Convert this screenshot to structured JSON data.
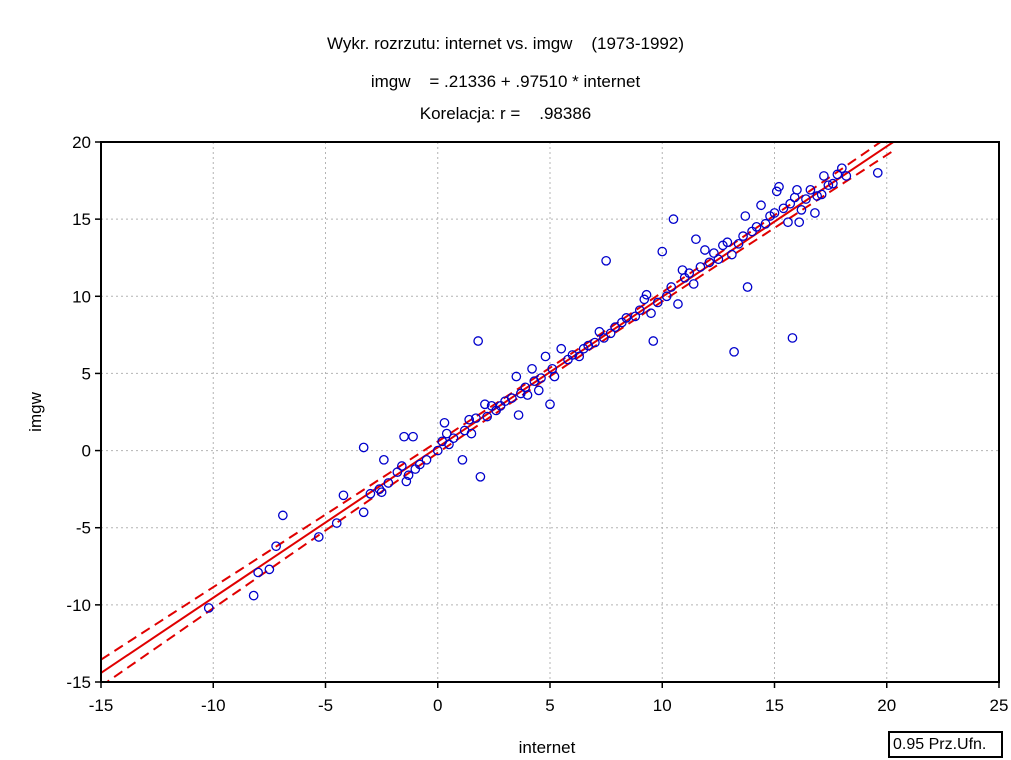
{
  "chart_data": {
    "type": "scatter",
    "title": "Wykr. rozrzutu: internet vs. imgw    (1973-1992)",
    "equation": "imgw    = .21336 + .97510 * internet",
    "correlation": "Korelacja: r =    .98386",
    "xlabel": "internet",
    "ylabel": "imgw",
    "xlim": [
      -15,
      25
    ],
    "ylim": [
      -15,
      20
    ],
    "xticks": [
      -15,
      -10,
      -5,
      0,
      5,
      10,
      15,
      20,
      25
    ],
    "yticks": [
      -15,
      -10,
      -5,
      0,
      5,
      10,
      15,
      20
    ],
    "grid": true,
    "regression": {
      "intercept": 0.21336,
      "slope": 0.9751,
      "color": "#e00000"
    },
    "confidence_label": "0.95 Prz.Ufn.",
    "point_color": "#0000cc",
    "points": [
      [
        -10.2,
        -10.2
      ],
      [
        -8.2,
        -9.4
      ],
      [
        -8.0,
        -7.9
      ],
      [
        -7.5,
        -7.7
      ],
      [
        -7.2,
        -6.2
      ],
      [
        -6.9,
        -4.2
      ],
      [
        -5.3,
        -5.6
      ],
      [
        -4.5,
        -4.7
      ],
      [
        -4.2,
        -2.9
      ],
      [
        -3.3,
        0.2
      ],
      [
        -3.3,
        -4.0
      ],
      [
        -3.0,
        -2.8
      ],
      [
        -2.6,
        -2.5
      ],
      [
        -2.5,
        -2.7
      ],
      [
        -2.4,
        -0.6
      ],
      [
        -2.2,
        -2.1
      ],
      [
        -1.8,
        -1.4
      ],
      [
        -1.6,
        -1.0
      ],
      [
        -1.5,
        0.9
      ],
      [
        -1.4,
        -2.0
      ],
      [
        -1.3,
        -1.6
      ],
      [
        -1.1,
        0.9
      ],
      [
        -1.0,
        -1.2
      ],
      [
        -0.8,
        -0.9
      ],
      [
        -0.5,
        -0.6
      ],
      [
        0.0,
        0.0
      ],
      [
        0.2,
        0.6
      ],
      [
        0.3,
        1.8
      ],
      [
        0.4,
        1.1
      ],
      [
        0.5,
        0.4
      ],
      [
        0.7,
        0.8
      ],
      [
        1.1,
        -0.6
      ],
      [
        1.2,
        1.3
      ],
      [
        1.4,
        2.0
      ],
      [
        1.5,
        1.1
      ],
      [
        1.7,
        2.1
      ],
      [
        1.8,
        7.1
      ],
      [
        1.9,
        -1.7
      ],
      [
        2.1,
        3.0
      ],
      [
        2.2,
        2.2
      ],
      [
        2.4,
        2.9
      ],
      [
        2.6,
        2.6
      ],
      [
        2.8,
        2.9
      ],
      [
        3.0,
        3.2
      ],
      [
        3.3,
        3.4
      ],
      [
        3.5,
        4.8
      ],
      [
        3.6,
        2.3
      ],
      [
        3.7,
        3.7
      ],
      [
        3.9,
        4.1
      ],
      [
        4.0,
        3.6
      ],
      [
        4.2,
        5.3
      ],
      [
        4.3,
        4.5
      ],
      [
        4.5,
        3.9
      ],
      [
        4.6,
        4.7
      ],
      [
        4.8,
        6.1
      ],
      [
        5.0,
        3.0
      ],
      [
        5.1,
        5.3
      ],
      [
        5.2,
        4.8
      ],
      [
        5.5,
        6.6
      ],
      [
        5.8,
        5.9
      ],
      [
        6.0,
        6.2
      ],
      [
        6.3,
        6.1
      ],
      [
        6.5,
        6.6
      ],
      [
        6.7,
        6.8
      ],
      [
        7.0,
        7.0
      ],
      [
        7.2,
        7.7
      ],
      [
        7.4,
        7.3
      ],
      [
        7.5,
        12.3
      ],
      [
        7.7,
        7.6
      ],
      [
        7.9,
        8.0
      ],
      [
        8.2,
        8.3
      ],
      [
        8.4,
        8.6
      ],
      [
        8.8,
        8.7
      ],
      [
        9.0,
        9.1
      ],
      [
        9.2,
        9.8
      ],
      [
        9.3,
        10.1
      ],
      [
        9.5,
        8.9
      ],
      [
        9.6,
        7.1
      ],
      [
        9.8,
        9.6
      ],
      [
        10.0,
        12.9
      ],
      [
        10.2,
        10.0
      ],
      [
        10.4,
        10.6
      ],
      [
        10.5,
        15.0
      ],
      [
        10.7,
        9.5
      ],
      [
        10.9,
        11.7
      ],
      [
        11.0,
        11.2
      ],
      [
        11.2,
        11.5
      ],
      [
        11.4,
        10.8
      ],
      [
        11.5,
        13.7
      ],
      [
        11.7,
        11.9
      ],
      [
        11.9,
        13.0
      ],
      [
        12.1,
        12.2
      ],
      [
        12.3,
        12.8
      ],
      [
        12.5,
        12.4
      ],
      [
        12.7,
        13.3
      ],
      [
        12.9,
        13.5
      ],
      [
        13.1,
        12.7
      ],
      [
        13.2,
        6.4
      ],
      [
        13.4,
        13.4
      ],
      [
        13.6,
        13.9
      ],
      [
        13.7,
        15.2
      ],
      [
        13.8,
        10.6
      ],
      [
        14.0,
        14.2
      ],
      [
        14.2,
        14.5
      ],
      [
        14.4,
        15.9
      ],
      [
        14.6,
        14.7
      ],
      [
        14.8,
        15.2
      ],
      [
        15.0,
        15.4
      ],
      [
        15.1,
        16.8
      ],
      [
        15.2,
        17.1
      ],
      [
        15.4,
        15.7
      ],
      [
        15.6,
        14.8
      ],
      [
        15.7,
        16.0
      ],
      [
        15.8,
        7.3
      ],
      [
        15.9,
        16.4
      ],
      [
        16.0,
        16.9
      ],
      [
        16.1,
        14.8
      ],
      [
        16.2,
        15.6
      ],
      [
        16.4,
        16.3
      ],
      [
        16.6,
        16.9
      ],
      [
        16.8,
        15.4
      ],
      [
        16.9,
        16.5
      ],
      [
        17.1,
        16.6
      ],
      [
        17.2,
        17.8
      ],
      [
        17.4,
        17.2
      ],
      [
        17.6,
        17.3
      ],
      [
        17.8,
        17.9
      ],
      [
        18.0,
        18.3
      ],
      [
        18.2,
        17.8
      ],
      [
        19.6,
        18.0
      ]
    ]
  }
}
